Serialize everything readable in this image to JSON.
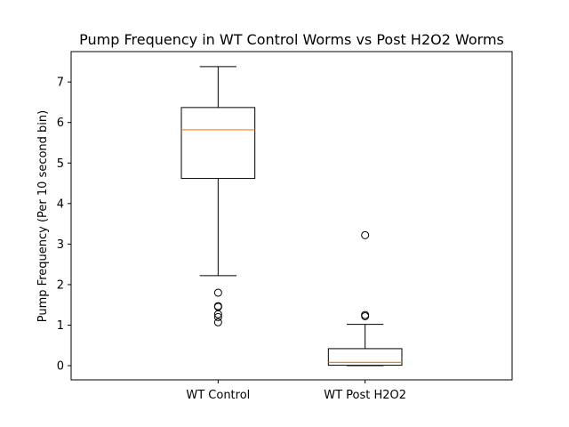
{
  "chart_data": {
    "type": "boxplot",
    "title": "Pump Frequency in WT Control Worms vs Post H2O2 Worms",
    "xlabel": "",
    "ylabel": "Pump Frequency (Per 10 second bin)",
    "ylim": [
      -0.35,
      7.75
    ],
    "yticks": [
      0,
      1,
      2,
      3,
      4,
      5,
      6,
      7
    ],
    "categories": [
      "WT Control",
      "WT Post H2O2"
    ],
    "boxes": [
      {
        "name": "WT Control",
        "whisker_low": 2.22,
        "q1": 4.62,
        "median": 5.82,
        "q3": 6.37,
        "whisker_high": 7.38,
        "outliers": [
          1.8,
          1.47,
          1.45,
          1.27,
          1.2,
          1.07
        ]
      },
      {
        "name": "WT Post H2O2",
        "whisker_low": 0.0,
        "q1": 0.01,
        "median": 0.08,
        "q3": 0.42,
        "whisker_high": 1.02,
        "outliers": [
          3.22,
          1.25,
          1.22
        ]
      }
    ],
    "colors": {
      "median": "#ff7f0e",
      "box": "#000000",
      "background": "#ffffff"
    },
    "grid": false,
    "legend": "none"
  }
}
